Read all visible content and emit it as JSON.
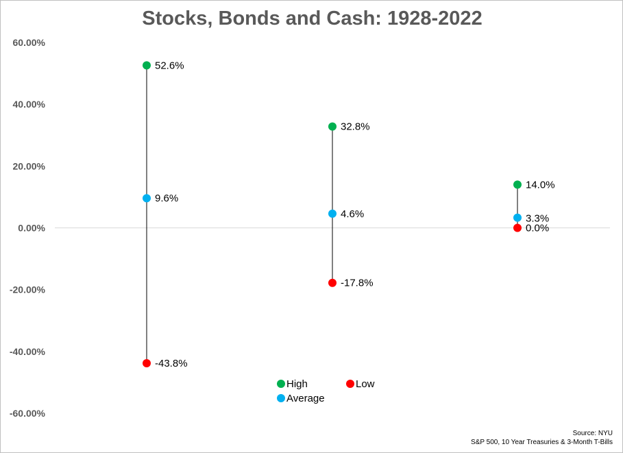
{
  "title": "Stocks, Bonds and Cash: 1928-2022",
  "source": {
    "line1": "Source: NYU",
    "line2": "S&P 500, 10 Year Treasuries & 3-Month T-Bills"
  },
  "colors": {
    "high": "#00b050",
    "average": "#00b0f0",
    "low": "#ff0000",
    "axis_text": "#595959",
    "zero_line": "#d9d9d9",
    "connector": "#000000"
  },
  "chart_data": {
    "type": "scatter",
    "title": "Stocks, Bonds and Cash: 1928-2022",
    "ylim": [
      -60,
      60
    ],
    "yticks": [
      60,
      40,
      20,
      0,
      -20,
      -40,
      -60
    ],
    "ytick_labels": [
      "60.00%",
      "40.00%",
      "20.00%",
      "0.00%",
      "-20.00%",
      "-40.00%",
      "-60.00%"
    ],
    "grid": false,
    "zero_line": true,
    "legend_position": "bottom-center",
    "categories": [
      "",
      "",
      ""
    ],
    "series": [
      {
        "name": "High",
        "color": "#00b050",
        "values": [
          52.6,
          32.8,
          14.0
        ],
        "labels": [
          "52.6%",
          "32.8%",
          "14.0%"
        ]
      },
      {
        "name": "Average",
        "color": "#00b0f0",
        "values": [
          9.6,
          4.6,
          3.3
        ],
        "labels": [
          "9.6%",
          "4.6%",
          "3.3%"
        ]
      },
      {
        "name": "Low",
        "color": "#ff0000",
        "values": [
          -43.8,
          -17.8,
          0.0
        ],
        "labels": [
          "-43.8%",
          "-17.8%",
          "0.0%"
        ]
      }
    ]
  }
}
